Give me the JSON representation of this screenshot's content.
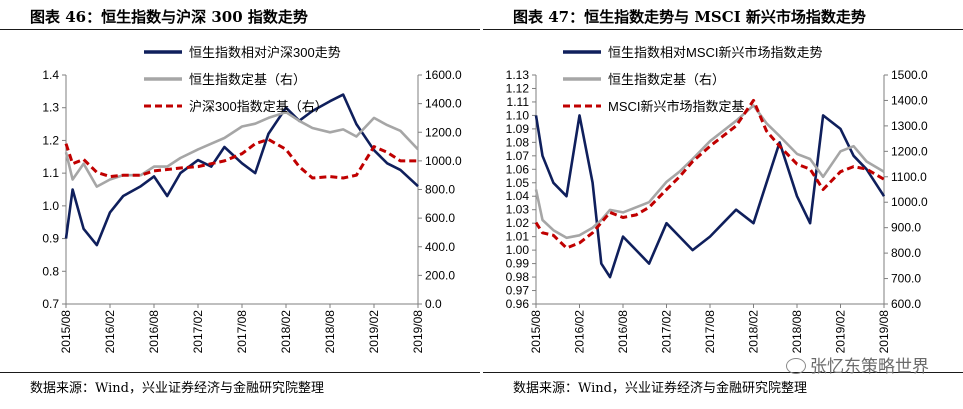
{
  "charts": [
    {
      "title": "图表 46：恒生指数与沪深 300 指数走势",
      "source": "数据来源：Wind，兴业证券经济与金融研究院整理",
      "chart_data": {
        "type": "line",
        "x_ticks": [
          "2015/08",
          "2016/02",
          "2016/08",
          "2017/02",
          "2017/08",
          "2018/02",
          "2018/08",
          "2019/02",
          "2019/08"
        ],
        "y_left": {
          "min": 0.7,
          "max": 1.4,
          "step": 0.1,
          "ticks": [
            "0.7",
            "0.8",
            "0.9",
            "1.0",
            "1.1",
            "1.2",
            "1.3",
            "1.4"
          ]
        },
        "y_right": {
          "min": 0,
          "max": 1600,
          "step": 200,
          "ticks": [
            "0.0",
            "200.0",
            "400.0",
            "600.0",
            "800.0",
            "1000.0",
            "1200.0",
            "1400.0",
            "1600.0"
          ]
        },
        "legend": [
          "恒生指数相对沪深300走势",
          "恒生指数定基（右）",
          "沪深300指数定基（右）"
        ],
        "series": [
          {
            "name": "恒生指数相对沪深300走势",
            "axis": "left",
            "color": "#0f1f5c",
            "style": "solid",
            "x": [
              0,
              0.15,
              0.4,
              0.7,
              1.0,
              1.3,
              1.7,
              2.0,
              2.3,
              2.6,
              3.0,
              3.3,
              3.6,
              4.0,
              4.3,
              4.6,
              5.0,
              5.3,
              5.6,
              6.0,
              6.3,
              6.6,
              7.0,
              7.3,
              7.6,
              8.0
            ],
            "y": [
              0.9,
              1.05,
              0.93,
              0.88,
              0.98,
              1.03,
              1.06,
              1.09,
              1.03,
              1.1,
              1.14,
              1.12,
              1.18,
              1.13,
              1.1,
              1.22,
              1.3,
              1.26,
              1.29,
              1.32,
              1.34,
              1.25,
              1.17,
              1.13,
              1.11,
              1.06
            ]
          },
          {
            "name": "恒生指数定基（右）",
            "axis": "right",
            "color": "#a6a6a6",
            "style": "solid",
            "x": [
              0,
              0.15,
              0.4,
              0.7,
              1.0,
              1.3,
              1.7,
              2.0,
              2.3,
              2.6,
              3.0,
              3.3,
              3.6,
              4.0,
              4.3,
              4.6,
              5.0,
              5.3,
              5.6,
              6.0,
              6.3,
              6.6,
              7.0,
              7.3,
              7.6,
              8.0
            ],
            "y": [
              1060,
              870,
              980,
              820,
              870,
              900,
              900,
              960,
              960,
              1020,
              1080,
              1120,
              1160,
              1240,
              1260,
              1300,
              1340,
              1280,
              1230,
              1200,
              1220,
              1170,
              1300,
              1250,
              1210,
              1080
            ]
          },
          {
            "name": "沪深300指数定基（右）",
            "axis": "right",
            "color": "#c00000",
            "style": "dashed",
            "x": [
              0,
              0.15,
              0.4,
              0.7,
              1.0,
              1.3,
              1.7,
              2.0,
              2.3,
              2.6,
              3.0,
              3.3,
              3.6,
              4.0,
              4.3,
              4.6,
              5.0,
              5.3,
              5.6,
              6.0,
              6.3,
              6.6,
              7.0,
              7.3,
              7.6,
              8.0
            ],
            "y": [
              1120,
              980,
              1010,
              920,
              890,
              900,
              900,
              930,
              940,
              950,
              960,
              980,
              1000,
              1050,
              1120,
              1150,
              1080,
              960,
              880,
              890,
              880,
              900,
              1100,
              1060,
              1000,
              1000
            ]
          }
        ]
      }
    },
    {
      "title": "图表 47：恒生指数走势与 MSCI 新兴市场指数走势",
      "source": "数据来源：Wind，兴业证券经济与金融研究院整理",
      "chart_data": {
        "type": "line",
        "x_ticks": [
          "2015/08",
          "2016/02",
          "2016/08",
          "2017/02",
          "2017/08",
          "2018/02",
          "2018/08",
          "2019/02",
          "2019/08"
        ],
        "y_left": {
          "min": 0.96,
          "max": 1.13,
          "step": 0.01,
          "ticks": [
            "0.96",
            "0.97",
            "0.98",
            "0.99",
            "1.00",
            "1.01",
            "1.02",
            "1.03",
            "1.04",
            "1.05",
            "1.06",
            "1.07",
            "1.08",
            "1.09",
            "1.10",
            "1.11",
            "1.12",
            "1.13"
          ]
        },
        "y_right": {
          "min": 600,
          "max": 1500,
          "step": 100,
          "ticks": [
            "600.0",
            "700.0",
            "800.0",
            "900.0",
            "1000.0",
            "1100.0",
            "1200.0",
            "1300.0",
            "1400.0",
            "1500.0"
          ]
        },
        "legend": [
          "恒生指数相对MSCI新兴市场指数走势",
          "恒生指数定基（右）",
          "MSCI新兴市场指数定基"
        ],
        "series": [
          {
            "name": "恒生指数相对MSCI新兴市场指数走势",
            "axis": "left",
            "color": "#0f1f5c",
            "style": "solid",
            "x": [
              0,
              0.15,
              0.4,
              0.7,
              1.0,
              1.3,
              1.5,
              1.7,
              2.0,
              2.3,
              2.6,
              3.0,
              3.3,
              3.6,
              4.0,
              4.3,
              4.6,
              5.0,
              5.3,
              5.6,
              6.0,
              6.3,
              6.6,
              7.0,
              7.3,
              7.6,
              8.0
            ],
            "y": [
              1.1,
              1.07,
              1.05,
              1.04,
              1.1,
              1.05,
              0.99,
              0.98,
              1.01,
              1.0,
              0.99,
              1.02,
              1.01,
              1.0,
              1.01,
              1.02,
              1.03,
              1.02,
              1.05,
              1.08,
              1.04,
              1.02,
              1.1,
              1.09,
              1.07,
              1.06,
              1.04
            ]
          },
          {
            "name": "恒生指数定基（右）",
            "axis": "right",
            "color": "#a6a6a6",
            "style": "solid",
            "x": [
              0,
              0.15,
              0.4,
              0.7,
              1.0,
              1.3,
              1.5,
              1.7,
              2.0,
              2.3,
              2.6,
              3.0,
              3.3,
              3.6,
              4.0,
              4.3,
              4.6,
              5.0,
              5.3,
              5.6,
              6.0,
              6.3,
              6.6,
              7.0,
              7.3,
              7.6,
              8.0
            ],
            "y": [
              1050,
              930,
              890,
              860,
              870,
              900,
              930,
              970,
              960,
              980,
              1000,
              1080,
              1120,
              1170,
              1240,
              1280,
              1320,
              1380,
              1310,
              1260,
              1190,
              1170,
              1100,
              1200,
              1220,
              1160,
              1120
            ]
          },
          {
            "name": "MSCI新兴市场指数定基",
            "axis": "right",
            "color": "#c00000",
            "style": "dashed",
            "x": [
              0,
              0.15,
              0.4,
              0.7,
              1.0,
              1.3,
              1.5,
              1.7,
              2.0,
              2.3,
              2.6,
              3.0,
              3.3,
              3.6,
              4.0,
              4.3,
              4.6,
              5.0,
              5.3,
              5.6,
              6.0,
              6.3,
              6.6,
              7.0,
              7.3,
              7.6,
              8.0
            ],
            "y": [
              920,
              880,
              870,
              820,
              840,
              880,
              920,
              960,
              940,
              950,
              980,
              1050,
              1100,
              1160,
              1220,
              1260,
              1300,
              1400,
              1280,
              1220,
              1150,
              1130,
              1050,
              1120,
              1140,
              1130,
              1090
            ]
          }
        ]
      }
    }
  ],
  "watermark": "张忆东策略世界"
}
